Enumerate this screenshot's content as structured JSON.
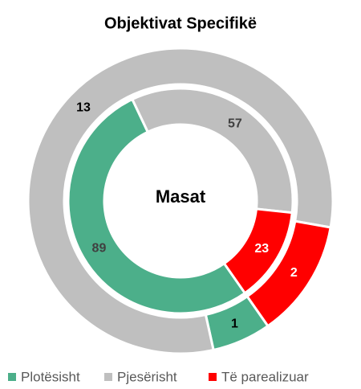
{
  "chart_data": {
    "type": "doughnut",
    "title": "Objektivat Specifikë",
    "center_label": "Masat",
    "categories": [
      "Plotësisht",
      "Pjesërisht",
      "Të parealizuar"
    ],
    "colors": [
      "#4caf8a",
      "#bfbfbf",
      "#ff0000"
    ],
    "series": [
      {
        "values": [
          89,
          57,
          23
        ]
      },
      {
        "values": [
          1,
          13,
          2
        ]
      }
    ],
    "legend": "bottom"
  }
}
